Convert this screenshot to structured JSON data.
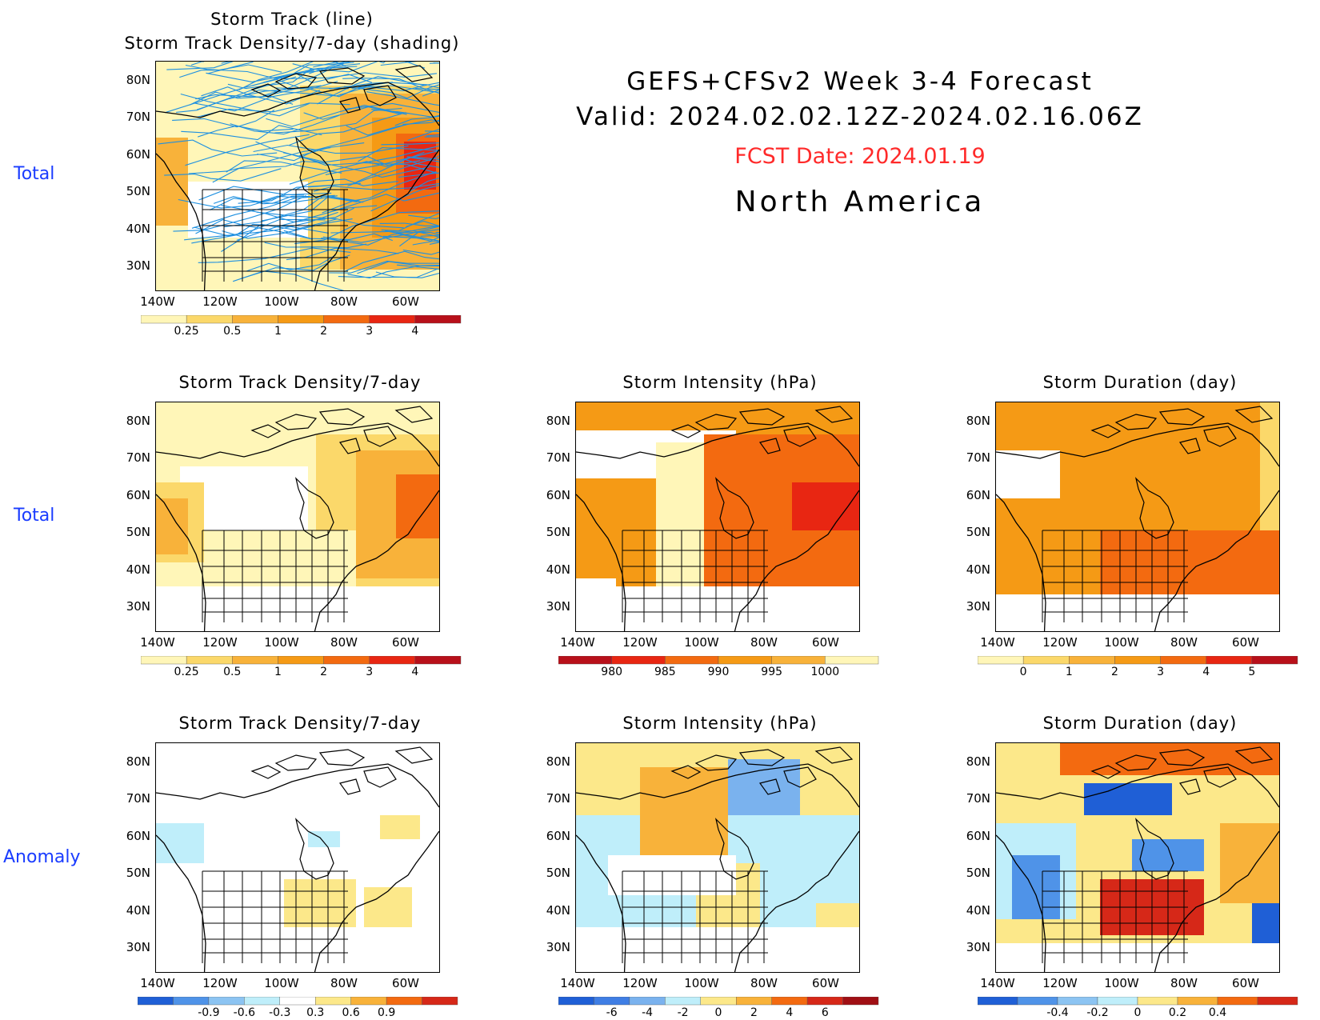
{
  "header": {
    "line1": "GEFS+CFSv2 Week 3-4 Forecast",
    "line2": "Valid: 2024.02.02.12Z-2024.02.16.06Z",
    "fcst_date": "FCST Date: 2024.01.19",
    "region": "North America",
    "fcst_color": "#ff2a2a"
  },
  "row_labels": [
    "Total",
    "Total",
    "Anomaly"
  ],
  "row_label_color": "#1a3cff",
  "axes": {
    "lat_labels": [
      "80N",
      "70N",
      "60N",
      "50N",
      "40N",
      "30N"
    ],
    "lon_labels": [
      "140W",
      "120W",
      "100W",
      "80W",
      "60W"
    ]
  },
  "panels": {
    "track": {
      "title1": "Storm Track (line)",
      "title2": "Storm Track Density/7-day (shading)"
    },
    "density_total": {
      "title": "Storm Track Density/7-day"
    },
    "intensity_total": {
      "title": "Storm Intensity (hPa)"
    },
    "duration_total": {
      "title": "Storm Duration (day)"
    },
    "density_anom": {
      "title": "Storm Track Density/7-day"
    },
    "intensity_anom": {
      "title": "Storm Intensity (hPa)"
    },
    "duration_anom": {
      "title": "Storm Duration (day)"
    }
  },
  "colorbars": {
    "density": {
      "ticks": [
        "0.25",
        "0.5",
        "1",
        "2",
        "3",
        "4"
      ],
      "colors": [
        "#fff6b8",
        "#fbd86a",
        "#f8b23a",
        "#f59a15",
        "#f36a10",
        "#e82612",
        "#b8101a"
      ]
    },
    "intensity": {
      "ticks": [
        "980",
        "985",
        "990",
        "995",
        "1000"
      ],
      "colors": [
        "#b8101a",
        "#e82612",
        "#f36a10",
        "#f59a15",
        "#f8b23a",
        "#fff6b8"
      ]
    },
    "duration": {
      "ticks": [
        "0",
        "1",
        "2",
        "3",
        "4",
        "5"
      ],
      "colors": [
        "#fff6b8",
        "#fbd86a",
        "#f8b23a",
        "#f59a15",
        "#f36a10",
        "#e82612",
        "#b8101a"
      ]
    },
    "density_anom": {
      "ticks": [
        "-0.9",
        "-0.6",
        "-0.3",
        "0.3",
        "0.6",
        "0.9"
      ],
      "colors": [
        "#1f5fd6",
        "#4f93e8",
        "#8cc4f2",
        "#bfeefa",
        "#ffffff",
        "#fce88a",
        "#f8b23a",
        "#f36a10",
        "#d62818"
      ]
    },
    "intensity_anom": {
      "ticks": [
        "-6",
        "-4",
        "-2",
        "0",
        "2",
        "4",
        "6"
      ],
      "colors": [
        "#1f5fd6",
        "#3f7ee4",
        "#7ab2ee",
        "#bfeefa",
        "#fce88a",
        "#f8b23a",
        "#f36a10",
        "#d62818",
        "#a00f14"
      ]
    },
    "duration_anom": {
      "ticks": [
        "-0.4",
        "-0.2",
        "0",
        "0.2",
        "0.4"
      ],
      "colors": [
        "#1f5fd6",
        "#4f93e8",
        "#8cc4f2",
        "#bfeefa",
        "#fce88a",
        "#f8b23a",
        "#f36a10",
        "#d62818"
      ]
    }
  },
  "track_line_color": "#1e90e0"
}
